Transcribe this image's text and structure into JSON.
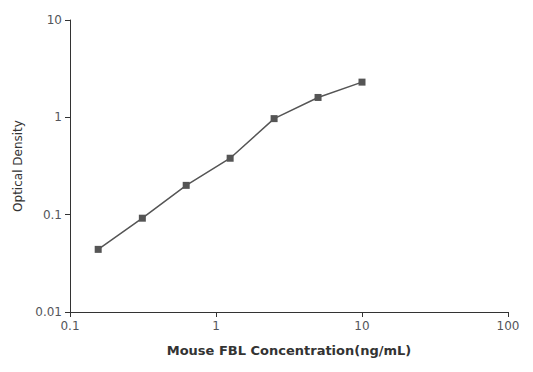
{
  "chart_data": {
    "type": "line",
    "x": [
      0.156,
      0.313,
      0.625,
      1.25,
      2.5,
      5.0,
      10.0
    ],
    "values": [
      0.044,
      0.092,
      0.2,
      0.38,
      0.97,
      1.6,
      2.3
    ],
    "xlabel": "Mouse FBL Concentration(ng/mL)",
    "ylabel": "Optical Density",
    "xlim": [
      0.1,
      100
    ],
    "ylim": [
      0.01,
      10
    ],
    "xticks": [
      0.1,
      1,
      10,
      100
    ],
    "yticks": [
      0.01,
      0.1,
      1,
      10
    ],
    "log": true,
    "grid": false,
    "marker": "square",
    "color": "#555555"
  }
}
